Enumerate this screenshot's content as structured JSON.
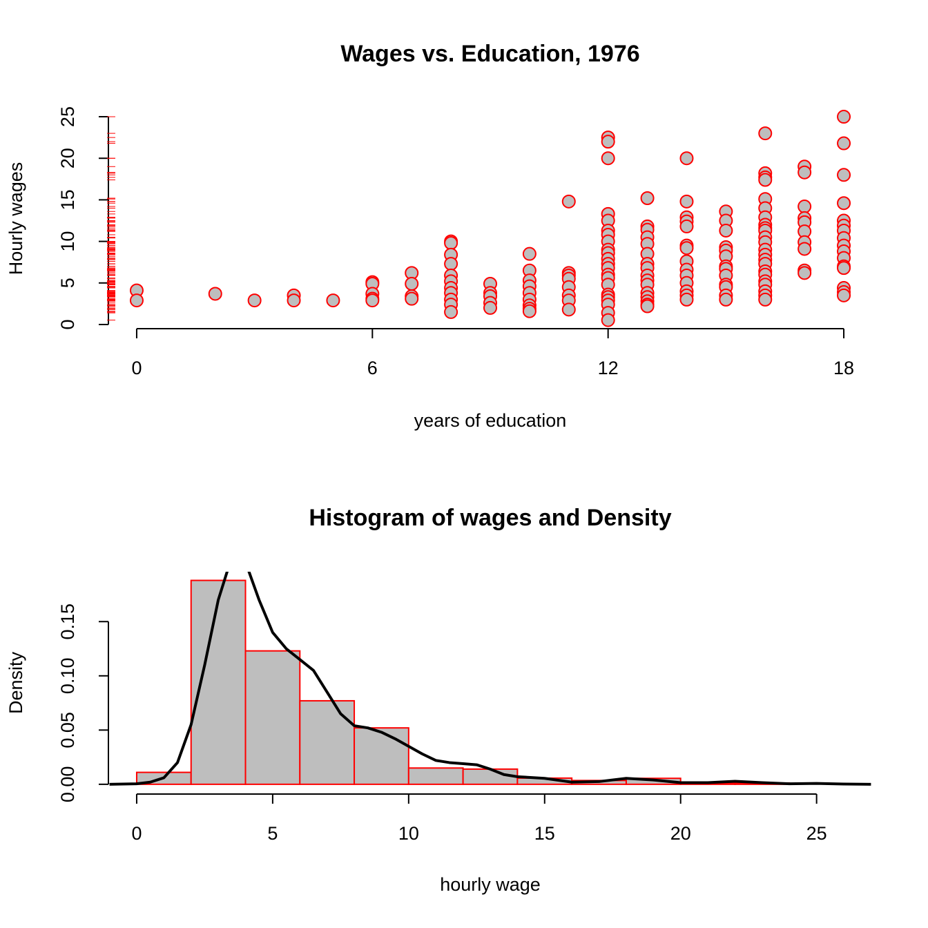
{
  "chart_data": [
    {
      "type": "scatter",
      "title": "Wages vs. Education, 1976",
      "x_label": "years of education",
      "y_label": "Hourly wages",
      "xlim": [
        -0.72,
        18.72
      ],
      "ylim": [
        -0.5,
        26
      ],
      "xticks": [
        0,
        6,
        12,
        18
      ],
      "yticks": [
        0,
        5,
        10,
        15,
        20,
        25
      ],
      "rug": true,
      "rug_color": "#ff0000",
      "series": [
        {
          "color": "#ff0000",
          "fill": "#bebebe",
          "x": [
            0,
            0,
            2,
            3,
            4,
            4,
            5,
            6,
            6,
            6,
            6,
            6,
            7,
            7,
            7,
            7,
            8,
            8,
            8,
            8,
            8,
            8,
            8,
            8,
            8,
            8,
            8,
            9,
            9,
            9,
            9,
            9,
            10,
            10,
            10,
            10,
            10,
            10,
            10,
            10,
            10,
            11,
            11,
            11,
            11,
            11,
            11,
            11,
            11,
            12,
            12,
            12,
            12,
            12,
            12,
            12,
            12,
            12,
            12,
            12,
            12,
            12,
            12,
            12,
            12,
            12,
            12,
            12,
            12,
            12,
            12,
            13,
            13,
            13,
            13,
            13,
            13,
            13,
            13,
            13,
            13,
            13,
            13,
            13,
            13,
            13,
            13,
            14,
            14,
            14,
            14,
            14,
            14,
            14,
            14,
            14,
            14,
            14,
            14,
            14,
            14,
            15,
            15,
            15,
            15,
            15,
            15,
            15,
            15,
            15,
            15,
            15,
            15,
            15,
            16,
            16,
            16,
            16,
            16,
            16,
            16,
            16,
            16,
            16,
            16,
            16,
            16,
            16,
            16,
            16,
            16,
            16,
            16,
            16,
            16,
            16,
            16,
            17,
            17,
            17,
            17,
            17,
            17,
            17,
            17,
            17,
            17,
            18,
            18,
            18,
            18,
            18,
            18,
            18,
            18,
            18,
            18,
            18,
            18,
            18,
            18,
            18,
            18
          ],
          "values": [
            4.1,
            2.9,
            3.7,
            2.9,
            3.5,
            2.9,
            2.9,
            5.1,
            4.9,
            3.7,
            3.1,
            2.9,
            6.2,
            4.9,
            3.4,
            3.1,
            10,
            9.8,
            8.4,
            7.3,
            5.9,
            5.2,
            4.4,
            3.8,
            3.0,
            2.4,
            1.5,
            4.9,
            3.8,
            3.4,
            2.6,
            2.0,
            8.5,
            6.5,
            5.3,
            4.6,
            3.8,
            3.0,
            2.3,
            1.9,
            1.6,
            14.8,
            6.2,
            5.9,
            5.5,
            4.5,
            3.5,
            2.9,
            1.8,
            22.5,
            22,
            20,
            13.3,
            12.5,
            11.3,
            10.8,
            10,
            9.0,
            8.6,
            7.9,
            7.3,
            6.8,
            6.0,
            5.6,
            4.8,
            3.6,
            3.3,
            2.9,
            2.4,
            1.4,
            0.53,
            15.2,
            11.8,
            11.4,
            10.5,
            9.7,
            8.5,
            7.3,
            6.8,
            5.9,
            5.3,
            4.8,
            3.8,
            3.3,
            2.8,
            2.4,
            2.2,
            20,
            14.8,
            12.9,
            12.4,
            11.8,
            9.5,
            9.2,
            7.6,
            6.6,
            5.9,
            5.0,
            4.0,
            3.5,
            3.0,
            13.6,
            12.5,
            11.3,
            9.3,
            8.9,
            8.2,
            7.0,
            6.7,
            5.9,
            4.8,
            4.5,
            3.5,
            3.0,
            23,
            18.2,
            17.7,
            17.4,
            15.1,
            14.0,
            12.9,
            12.0,
            11.6,
            11.3,
            10.5,
            9.9,
            9.0,
            8.4,
            7.8,
            7.3,
            6.4,
            6.0,
            5.2,
            4.8,
            4.0,
            3.5,
            3.0,
            19,
            18.3,
            14.2,
            12.8,
            12.3,
            11.2,
            9.9,
            9.1,
            6.5,
            6.2,
            25,
            21.8,
            18,
            14.6,
            12.5,
            11.9,
            11.3,
            10.4,
            9.5,
            8.8,
            8.0,
            7.0,
            6.8,
            4.4,
            3.9,
            3.5
          ]
        }
      ]
    },
    {
      "type": "histogram",
      "title": "Histogram of wages and Density",
      "x_label": "hourly wage",
      "y_label": "Density",
      "xlim": [
        -1.04,
        27.04
      ],
      "ylim": [
        -0.009,
        0.196
      ],
      "xticks": [
        0,
        5,
        10,
        15,
        20,
        25
      ],
      "yticks": [
        {
          "value": 0,
          "label": "0.00"
        },
        {
          "value": 0.05,
          "label": "0.05"
        },
        {
          "value": 0.1,
          "label": "0.10"
        },
        {
          "value": 0.15,
          "label": "0.15"
        }
      ],
      "bins": [
        0,
        2,
        4,
        6,
        8,
        10,
        12,
        14,
        16,
        18,
        20,
        22,
        24
      ],
      "values": [
        0.011,
        0.188,
        0.123,
        0.077,
        0.052,
        0.015,
        0.014,
        0.0057,
        0.0035,
        0.0055,
        0.001,
        0.0012
      ],
      "color": "#bebebe",
      "edge_color": "#ff0000",
      "lines": [
        {
          "color": "#000000",
          "x": [
            -1,
            0,
            0.5,
            1,
            1.5,
            2,
            2.5,
            3,
            3.5,
            4,
            4.5,
            5,
            5.5,
            6,
            6.5,
            7,
            7.5,
            8,
            8.5,
            9,
            9.5,
            10,
            10.5,
            11,
            11.5,
            12,
            12.5,
            13,
            13.5,
            14,
            15,
            16,
            17,
            18,
            19,
            20,
            21,
            22,
            23,
            24,
            25,
            26,
            27
          ],
          "values": [
            0,
            0.0005,
            0.002,
            0.006,
            0.02,
            0.055,
            0.11,
            0.17,
            0.21,
            0.205,
            0.17,
            0.14,
            0.125,
            0.115,
            0.105,
            0.085,
            0.065,
            0.054,
            0.052,
            0.048,
            0.042,
            0.035,
            0.028,
            0.022,
            0.02,
            0.019,
            0.018,
            0.014,
            0.009,
            0.007,
            0.0055,
            0.002,
            0.0025,
            0.0055,
            0.004,
            0.0015,
            0.0015,
            0.0028,
            0.0015,
            0.0005,
            0.0008,
            0.0002,
            0
          ]
        }
      ]
    }
  ]
}
